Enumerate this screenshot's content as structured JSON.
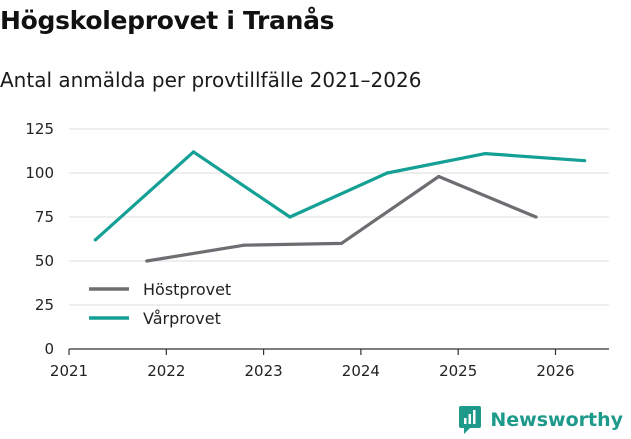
{
  "header": {
    "title": "Högskoleprovet i Tranås",
    "subtitle": "Antal anmälda per provtillfälle 2021–2026"
  },
  "brand": {
    "name": "Newsworthy",
    "color": "#1d9a8a"
  },
  "chart_data": {
    "type": "line",
    "title": "Högskoleprovet i Tranås",
    "subtitle": "Antal anmälda per provtillfälle 2021–2026",
    "xlabel": "",
    "ylabel": "",
    "xlim": [
      2021,
      2026.55
    ],
    "ylim": [
      0,
      125
    ],
    "yticks": [
      0,
      25,
      50,
      75,
      100,
      125
    ],
    "xticks": [
      2021,
      2022,
      2023,
      2024,
      2025,
      2026
    ],
    "grid": true,
    "legend_position": "bottom-left",
    "series": [
      {
        "name": "Höstprovet",
        "color": "#6e6e72",
        "x": [
          2021.8,
          2022.8,
          2023.8,
          2024.8,
          2025.8
        ],
        "values": [
          50,
          59,
          60,
          98,
          75
        ]
      },
      {
        "name": "Vårprovet",
        "color": "#14a094",
        "x": [
          2021.27,
          2022.28,
          2023.27,
          2024.27,
          2025.28,
          2026.3
        ],
        "values": [
          62,
          112,
          75,
          100,
          111,
          107
        ]
      }
    ]
  }
}
